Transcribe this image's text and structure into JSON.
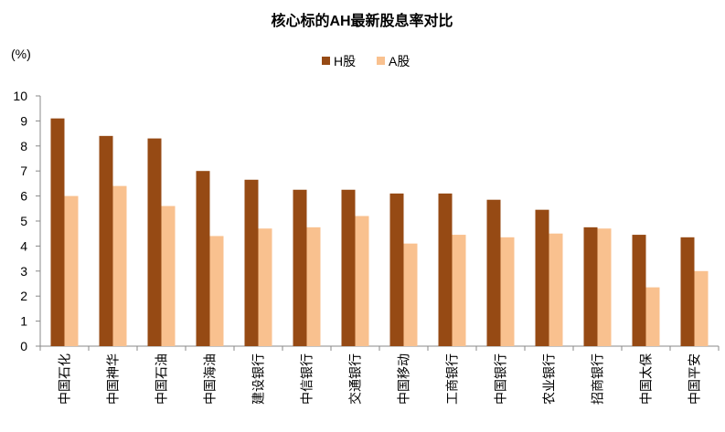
{
  "chart_data": {
    "type": "bar",
    "title": "核心标的AH最新股息率对比",
    "y_unit": "(%)",
    "categories": [
      "中国石化",
      "中国神华",
      "中国石油",
      "中国海油",
      "建设银行",
      "中信银行",
      "交通银行",
      "中国移动",
      "工商银行",
      "中国银行",
      "农业银行",
      "招商银行",
      "中国太保",
      "中国平安"
    ],
    "series": [
      {
        "name": "H股",
        "color": "#964a14",
        "values": [
          9.1,
          8.4,
          8.3,
          7.0,
          6.65,
          6.25,
          6.25,
          6.1,
          6.1,
          5.85,
          5.45,
          4.75,
          4.45,
          4.35
        ]
      },
      {
        "name": "A股",
        "color": "#f9c18f",
        "values": [
          6.0,
          6.4,
          5.6,
          4.4,
          4.7,
          4.75,
          5.2,
          4.1,
          4.45,
          4.35,
          4.5,
          4.7,
          2.35,
          3.0
        ]
      }
    ],
    "ylim": [
      0,
      10
    ],
    "yticks": [
      0,
      1,
      2,
      3,
      4,
      5,
      6,
      7,
      8,
      9,
      10
    ],
    "legend": "top"
  }
}
